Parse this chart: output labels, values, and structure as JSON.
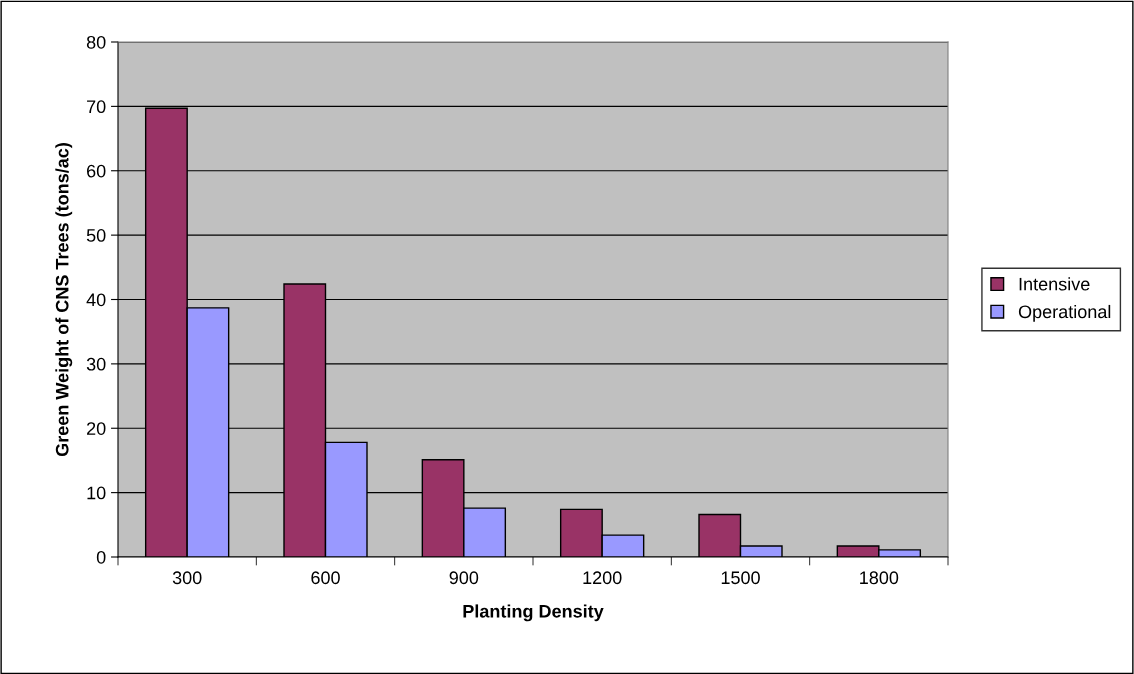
{
  "chart_data": {
    "type": "bar",
    "xlabel": "Planting Density",
    "ylabel": "Green Weight of CNS Trees (tons/ac)",
    "categories": [
      "300",
      "600",
      "900",
      "1200",
      "1500",
      "1800"
    ],
    "series": [
      {
        "name": "Intensive",
        "color": "#993366",
        "values": [
          69.7,
          42.4,
          15.1,
          7.4,
          6.6,
          1.7
        ]
      },
      {
        "name": "Operational",
        "color": "#9999ff",
        "values": [
          38.7,
          17.8,
          7.6,
          3.4,
          1.7,
          1.1
        ]
      }
    ],
    "ylim": [
      0,
      80
    ],
    "yticks": [
      0,
      10,
      20,
      30,
      40,
      50,
      60,
      70,
      80
    ],
    "grid": "y",
    "legend": "right"
  }
}
